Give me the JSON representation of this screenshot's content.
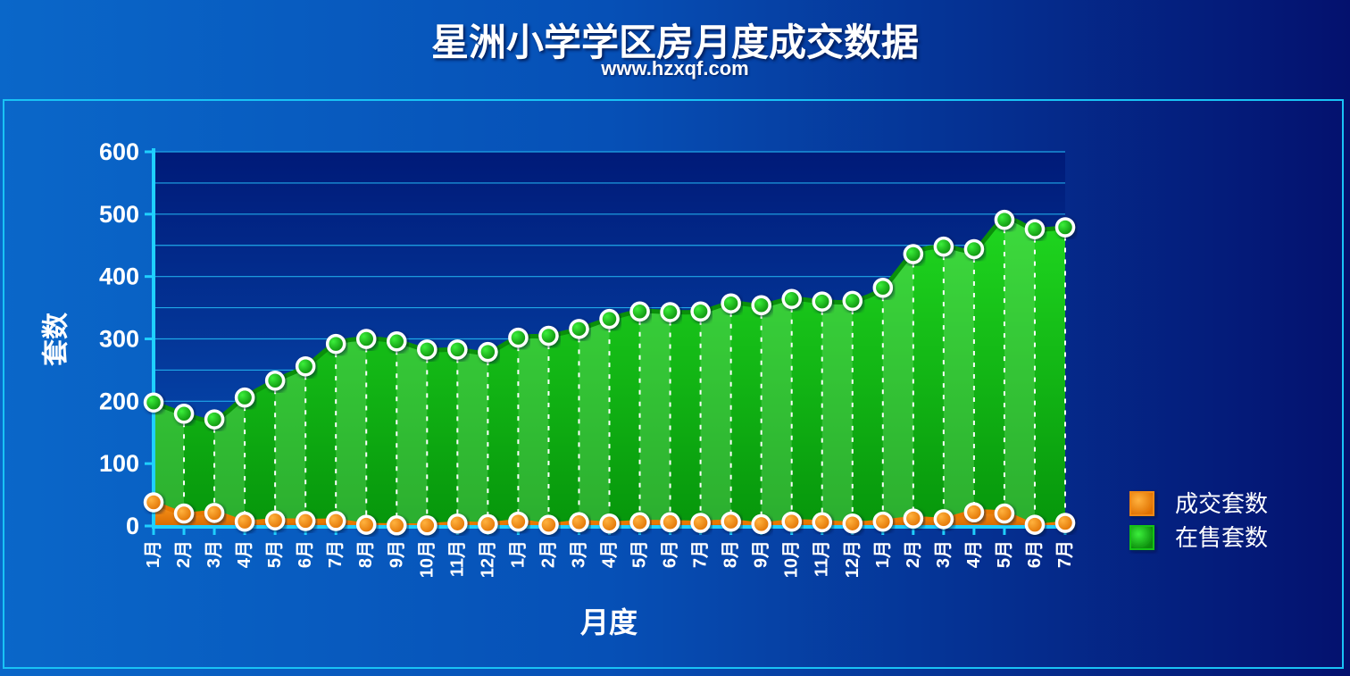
{
  "header": {
    "title": "星洲小学学区房月度成交数据",
    "subtitle": "www.hzxqf.com"
  },
  "chart_data": {
    "type": "area",
    "title": "星洲小学学区房月度成交数据",
    "subtitle": "www.hzxqf.com",
    "xlabel": "月度",
    "ylabel": "套数",
    "ylim": [
      0,
      600
    ],
    "yticks": [
      0,
      100,
      200,
      300,
      400,
      500,
      600
    ],
    "grid": true,
    "legend_position": "right",
    "categories": [
      "1月",
      "2月",
      "3月",
      "4月",
      "5月",
      "6月",
      "7月",
      "8月",
      "9月",
      "10月",
      "11月",
      "12月",
      "1月",
      "2月",
      "3月",
      "4月",
      "5月",
      "6月",
      "7月",
      "8月",
      "9月",
      "10月",
      "11月",
      "12月",
      "1月",
      "2月",
      "3月",
      "4月",
      "5月",
      "6月",
      "7月"
    ],
    "series": [
      {
        "name": "在售套数",
        "color": "#13c313",
        "values": [
          198,
          180,
          171,
          206,
          233,
          256,
          292,
          300,
          296,
          283,
          283,
          279,
          302,
          305,
          316,
          332,
          344,
          343,
          344,
          357,
          354,
          364,
          360,
          361,
          382,
          436,
          448,
          444,
          491,
          476,
          479
        ]
      },
      {
        "name": "成交套数",
        "color": "#f28a12",
        "values": [
          38,
          20,
          21,
          7,
          9,
          8,
          8,
          2,
          1,
          1,
          4,
          3,
          7,
          2,
          6,
          4,
          6,
          6,
          5,
          7,
          3,
          7,
          6,
          4,
          7,
          12,
          11,
          22,
          20,
          2,
          5
        ]
      }
    ]
  }
}
